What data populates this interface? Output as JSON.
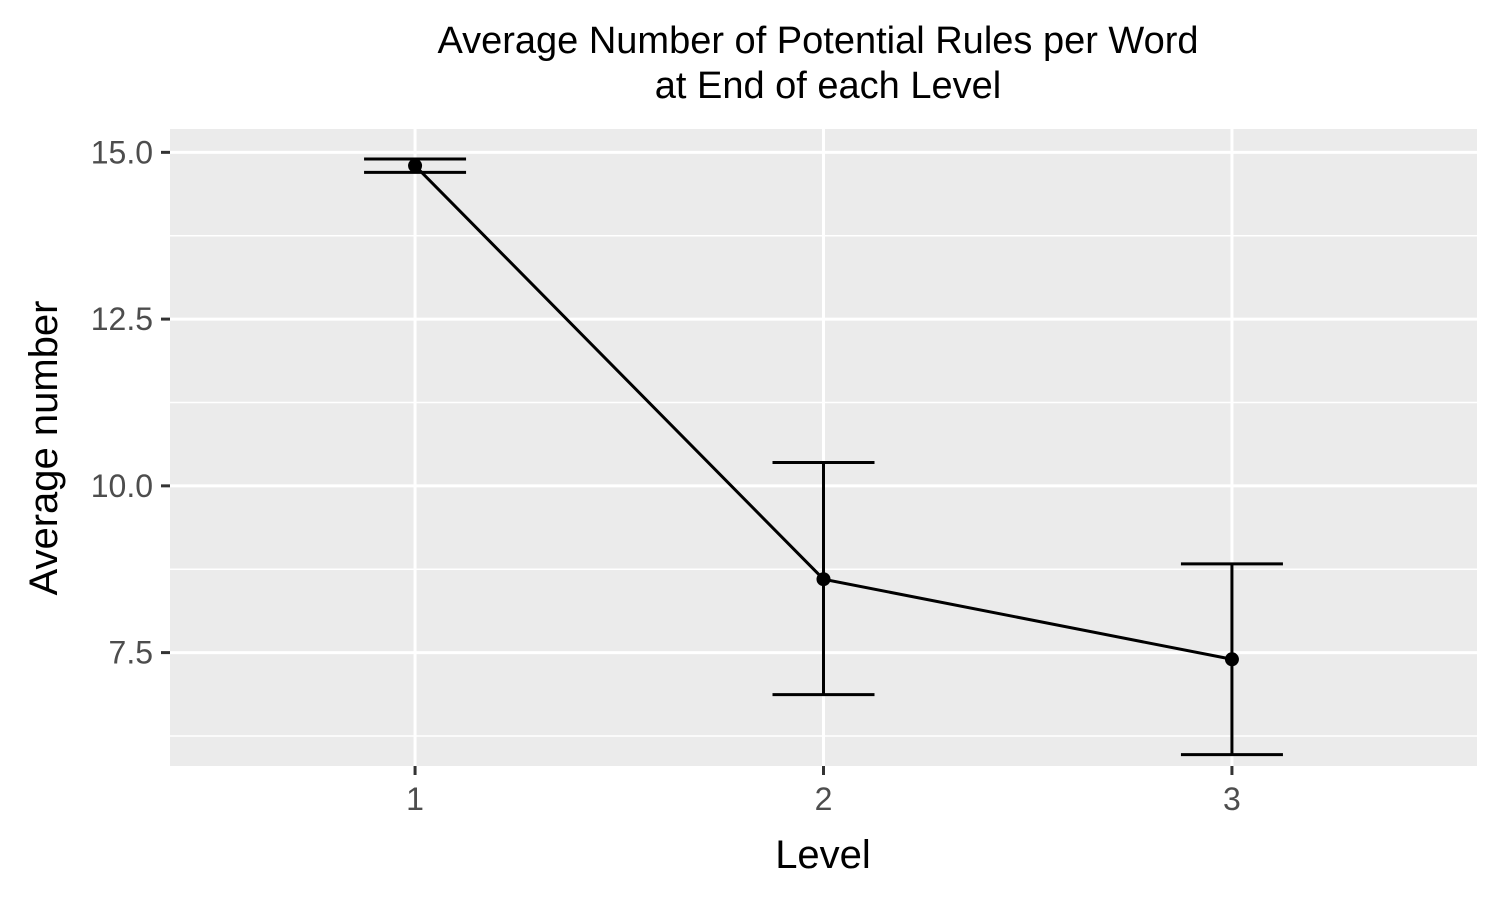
{
  "chart_data": {
    "type": "line",
    "title": [
      "Average Number of Potential Rules per Word",
      "at End of each Level"
    ],
    "xlabel": "Level",
    "ylabel": "Average number",
    "categories": [
      "1",
      "2",
      "3"
    ],
    "x_range": [
      0.4,
      3.6
    ],
    "ylim": [
      5.8,
      15.35
    ],
    "y_ticks": [
      7.5,
      10.0,
      12.5,
      15.0
    ],
    "y_tick_labels": [
      "7.5",
      "10.0",
      "12.5",
      "15.0"
    ],
    "grid": true,
    "series": [
      {
        "values": [
          14.8,
          8.6,
          7.4
        ],
        "error_low": [
          14.7,
          6.87,
          5.97
        ],
        "error_high": [
          14.9,
          10.35,
          8.83
        ]
      }
    ],
    "colors": {
      "panel": "#ebebeb",
      "grid": "#ffffff",
      "line": "#000000",
      "tick_text": "#4d4d4d"
    }
  }
}
